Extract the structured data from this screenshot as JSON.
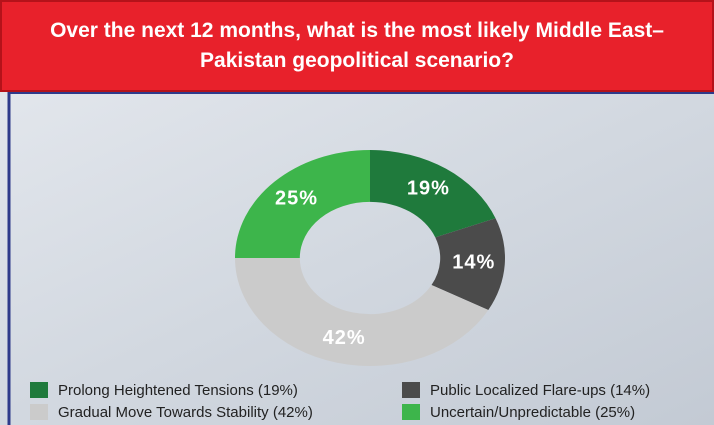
{
  "chart_data": {
    "type": "donut",
    "title": "Over the next 12 months, what is the most likely Middle East–Pakistan geopolitical scenario?",
    "categories": [
      "Prolong Heightened Tensions (19%)",
      "Public Localized Flare-ups (14%)",
      "Gradual Move Towards Stability (42%)",
      "Uncertain/Unpredictable (25%)"
    ],
    "values": [
      19,
      14,
      42,
      25
    ],
    "value_labels": [
      "19%",
      "14%",
      "42%",
      "25%"
    ],
    "colors": [
      "#1f7a3c",
      "#4b4b4b",
      "#cbcbcb",
      "#3db54b"
    ],
    "legend": "bottom"
  }
}
